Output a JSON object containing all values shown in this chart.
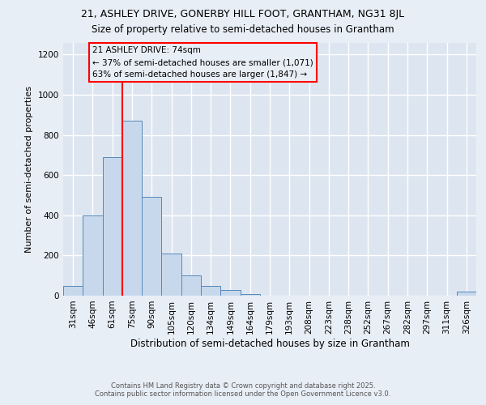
{
  "title1": "21, ASHLEY DRIVE, GONERBY HILL FOOT, GRANTHAM, NG31 8JL",
  "title2": "Size of property relative to semi-detached houses in Grantham",
  "xlabel": "Distribution of semi-detached houses by size in Grantham",
  "ylabel": "Number of semi-detached properties",
  "categories": [
    "31sqm",
    "46sqm",
    "61sqm",
    "75sqm",
    "90sqm",
    "105sqm",
    "120sqm",
    "134sqm",
    "149sqm",
    "164sqm",
    "179sqm",
    "193sqm",
    "208sqm",
    "223sqm",
    "238sqm",
    "252sqm",
    "267sqm",
    "282sqm",
    "297sqm",
    "311sqm",
    "326sqm"
  ],
  "values": [
    50,
    400,
    690,
    870,
    490,
    210,
    100,
    50,
    30,
    10,
    0,
    0,
    0,
    0,
    0,
    0,
    0,
    0,
    0,
    0,
    20
  ],
  "bar_color": "#c8d8ec",
  "bar_edge_color": "#5588bb",
  "property_bin_index": 3,
  "annotation_label": "21 ASHLEY DRIVE: 74sqm",
  "annotation_line1": "← 37% of semi-detached houses are smaller (1,071)",
  "annotation_line2": "63% of semi-detached houses are larger (1,847) →",
  "ylim": [
    0,
    1260
  ],
  "yticks": [
    0,
    200,
    400,
    600,
    800,
    1000,
    1200
  ],
  "background_color": "#e8eef6",
  "plot_bg_color": "#dde6f0",
  "grid_color": "#ffffff",
  "footer1": "Contains HM Land Registry data © Crown copyright and database right 2025.",
  "footer2": "Contains public sector information licensed under the Open Government Licence v3.0.",
  "title1_fontsize": 9,
  "title2_fontsize": 8.5
}
